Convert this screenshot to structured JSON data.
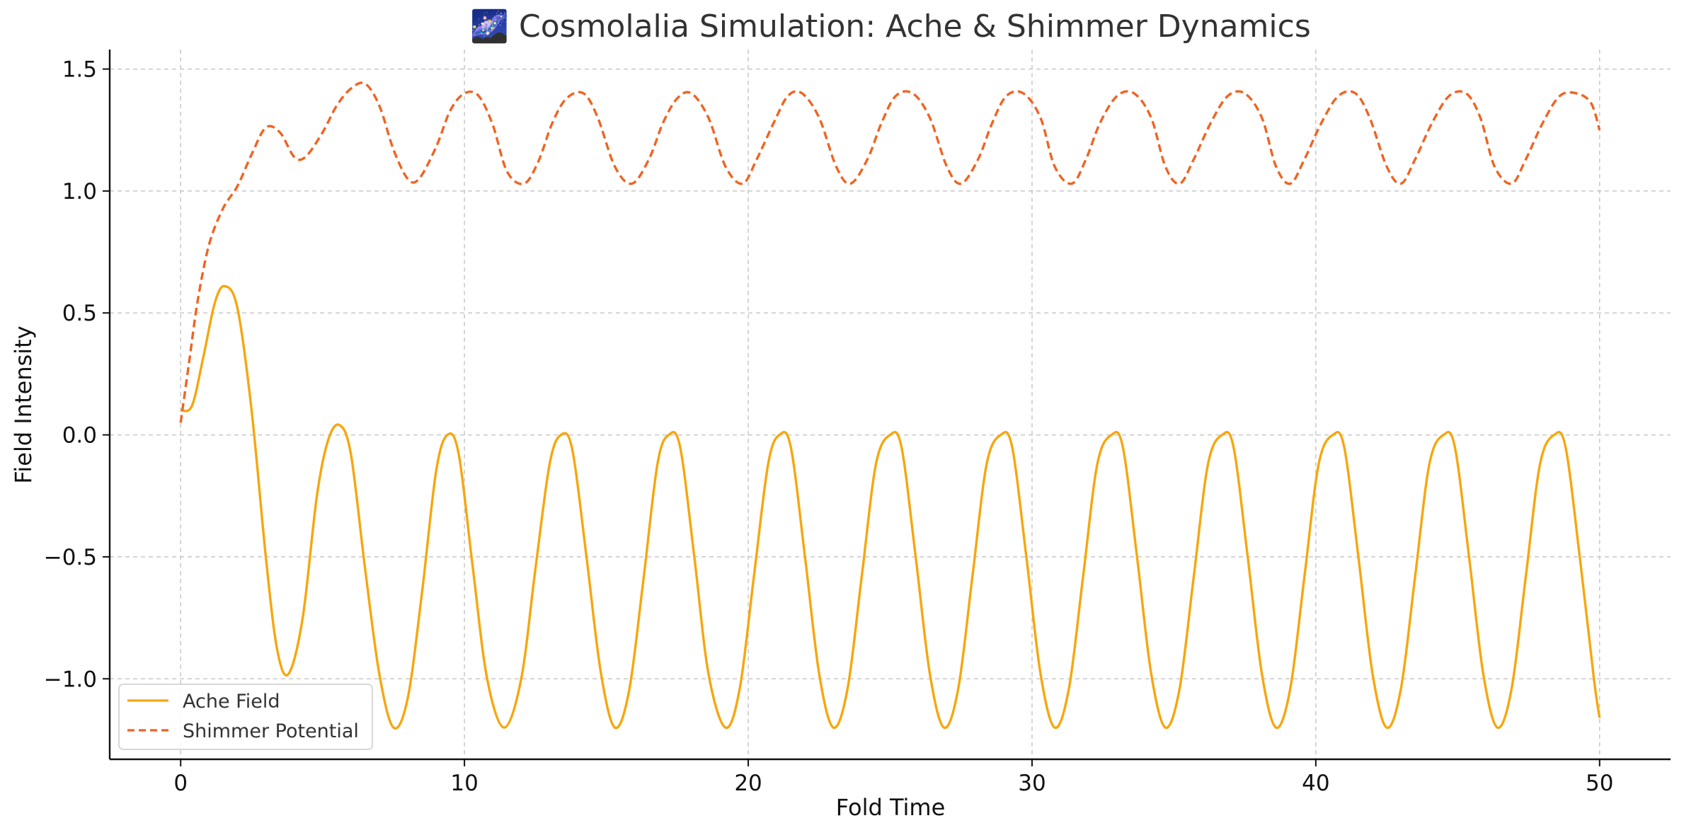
{
  "chart_data": {
    "type": "line",
    "title": "🌌 Cosmolalia Simulation: Ache & Shimmer Dynamics",
    "xlabel": "Fold Time",
    "ylabel": "Field Intensity",
    "xlim": [
      -2.5,
      52.5
    ],
    "ylim": [
      -1.33,
      1.58
    ],
    "xticks": [
      0,
      10,
      20,
      30,
      40,
      50
    ],
    "xtick_labels": [
      "0",
      "10",
      "20",
      "30",
      "40",
      "50"
    ],
    "yticks": [
      -1.0,
      -0.5,
      0.0,
      0.5,
      1.0,
      1.5
    ],
    "ytick_labels": [
      "−1.0",
      "−0.5",
      "0.0",
      "0.5",
      "1.0",
      "1.5"
    ],
    "grid": true,
    "legend_position": "bottom-left",
    "series": [
      {
        "name": "Ache Field",
        "color": "#f5a70f",
        "dash": "solid",
        "x": [
          0,
          0.4,
          0.8,
          1.2,
          1.55,
          2.0,
          2.5,
          3.0,
          3.4,
          3.8,
          4.3,
          4.8,
          5.2,
          5.6,
          6.0,
          6.5,
          7.0,
          7.5,
          8.0,
          8.5,
          9.0,
          9.4,
          9.8,
          10.3,
          10.8,
          11.4,
          12.0,
          12.5,
          13.0,
          13.4,
          13.8,
          14.3,
          14.8,
          15.3,
          15.8,
          16.3,
          16.8,
          17.2,
          17.6,
          18.1,
          18.6,
          19.2,
          19.7,
          20.2,
          20.7,
          21.1,
          21.5,
          22.0,
          22.5,
          23.0,
          23.5,
          24.0,
          24.5,
          25.0,
          25.4,
          25.9,
          26.4,
          26.9,
          27.4,
          27.9,
          28.4,
          28.9,
          29.3,
          29.8,
          30.3,
          30.8,
          31.3,
          31.8,
          32.3,
          32.8,
          33.2,
          33.7,
          34.2,
          34.7,
          35.2,
          35.7,
          36.2,
          36.7,
          37.1,
          37.6,
          38.1,
          38.6,
          39.1,
          39.6,
          40.1,
          40.6,
          41.0,
          41.5,
          42.0,
          42.5,
          43.0,
          43.5,
          44.0,
          44.5,
          44.9,
          45.4,
          45.9,
          46.4,
          46.9,
          47.4,
          47.9,
          48.4,
          48.8,
          49.3,
          49.8,
          50.0
        ],
        "y": [
          0.1,
          0.12,
          0.32,
          0.54,
          0.61,
          0.52,
          0.1,
          -0.5,
          -0.88,
          -0.98,
          -0.75,
          -0.25,
          -0.02,
          0.04,
          -0.08,
          -0.55,
          -0.98,
          -1.2,
          -1.08,
          -0.65,
          -0.15,
          0.0,
          -0.08,
          -0.55,
          -1.0,
          -1.2,
          -1.0,
          -0.55,
          -0.12,
          0.0,
          -0.06,
          -0.5,
          -0.97,
          -1.2,
          -1.05,
          -0.6,
          -0.12,
          0.0,
          -0.05,
          -0.5,
          -0.98,
          -1.2,
          -1.04,
          -0.58,
          -0.12,
          0.0,
          -0.05,
          -0.5,
          -0.98,
          -1.2,
          -1.04,
          -0.58,
          -0.12,
          0.0,
          -0.05,
          -0.5,
          -0.98,
          -1.2,
          -1.04,
          -0.58,
          -0.12,
          0.0,
          -0.05,
          -0.5,
          -0.98,
          -1.2,
          -1.04,
          -0.58,
          -0.12,
          0.0,
          -0.05,
          -0.5,
          -0.98,
          -1.2,
          -1.04,
          -0.58,
          -0.12,
          0.0,
          -0.05,
          -0.5,
          -0.98,
          -1.2,
          -1.04,
          -0.58,
          -0.12,
          0.0,
          -0.05,
          -0.5,
          -0.98,
          -1.2,
          -1.04,
          -0.58,
          -0.12,
          0.0,
          -0.05,
          -0.5,
          -0.98,
          -1.2,
          -1.04,
          -0.58,
          -0.12,
          0.0,
          -0.05,
          -0.5,
          -1.0,
          -1.16
        ]
      },
      {
        "name": "Shimmer Potential",
        "color": "#ee6423",
        "dash": "dashed",
        "x": [
          0,
          0.3,
          0.6,
          1.0,
          1.5,
          2.0,
          2.5,
          3.0,
          3.5,
          4.0,
          4.4,
          5.0,
          5.5,
          6.0,
          6.5,
          7.0,
          7.5,
          8.0,
          8.4,
          9.0,
          9.5,
          10.0,
          10.5,
          11.0,
          11.5,
          12.1,
          12.6,
          13.1,
          13.6,
          14.2,
          14.7,
          15.3,
          15.9,
          16.5,
          17.0,
          17.5,
          18.0,
          18.6,
          19.2,
          19.8,
          20.3,
          20.9,
          21.4,
          21.9,
          22.5,
          23.1,
          23.6,
          24.2,
          24.7,
          25.2,
          25.8,
          26.4,
          27.0,
          27.5,
          28.1,
          28.6,
          29.1,
          29.7,
          30.3,
          30.8,
          31.4,
          31.9,
          32.4,
          33.0,
          33.6,
          34.2,
          34.7,
          35.2,
          35.7,
          36.3,
          36.9,
          37.5,
          38.1,
          38.6,
          39.1,
          39.6,
          40.2,
          40.8,
          41.4,
          41.9,
          42.5,
          43.0,
          43.5,
          44.1,
          44.7,
          45.3,
          45.8,
          46.3,
          46.9,
          47.4,
          48.0,
          48.6,
          49.2,
          49.7,
          50.0
        ],
        "y": [
          0.05,
          0.3,
          0.55,
          0.78,
          0.93,
          1.02,
          1.15,
          1.26,
          1.24,
          1.14,
          1.14,
          1.24,
          1.35,
          1.42,
          1.44,
          1.35,
          1.17,
          1.05,
          1.05,
          1.18,
          1.33,
          1.4,
          1.39,
          1.27,
          1.08,
          1.03,
          1.12,
          1.28,
          1.38,
          1.4,
          1.3,
          1.1,
          1.03,
          1.13,
          1.28,
          1.38,
          1.4,
          1.3,
          1.1,
          1.03,
          1.13,
          1.28,
          1.39,
          1.4,
          1.3,
          1.1,
          1.03,
          1.13,
          1.28,
          1.39,
          1.4,
          1.3,
          1.1,
          1.03,
          1.13,
          1.28,
          1.39,
          1.4,
          1.3,
          1.1,
          1.03,
          1.13,
          1.28,
          1.39,
          1.4,
          1.3,
          1.1,
          1.03,
          1.13,
          1.28,
          1.39,
          1.4,
          1.3,
          1.1,
          1.03,
          1.13,
          1.28,
          1.39,
          1.4,
          1.3,
          1.1,
          1.03,
          1.13,
          1.28,
          1.39,
          1.4,
          1.3,
          1.1,
          1.03,
          1.13,
          1.28,
          1.39,
          1.4,
          1.36,
          1.25
        ]
      }
    ]
  }
}
